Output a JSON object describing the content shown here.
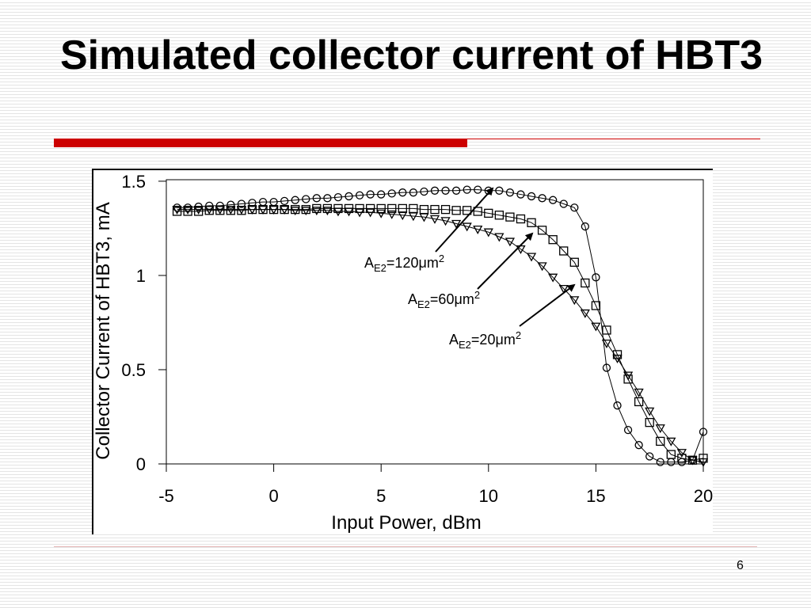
{
  "slide_title": "Simulated collector current of HBT3",
  "page_number": "6",
  "chart_data": {
    "type": "line",
    "xlabel": "Input Power, dBm",
    "ylabel": "Collector Current of HBT3, mA",
    "xlim": [
      -5,
      20
    ],
    "ylim": [
      0,
      1.55
    ],
    "xticks": [
      -5,
      0,
      5,
      10,
      15,
      20
    ],
    "yticks": [
      0,
      0.5,
      1,
      1.5
    ],
    "x": [
      -4.5,
      -4,
      -3.5,
      -3,
      -2.5,
      -2,
      -1.5,
      -1,
      -0.5,
      0,
      0.5,
      1,
      1.5,
      2,
      2.5,
      3,
      3.5,
      4,
      4.5,
      5,
      5.5,
      6,
      6.5,
      7,
      7.5,
      8,
      8.5,
      9,
      9.5,
      10,
      10.5,
      11,
      11.5,
      12,
      12.5,
      13,
      13.5,
      14,
      14.5,
      15,
      15.5,
      16,
      16.5,
      17,
      17.5,
      18,
      18.5,
      19,
      19.5,
      20
    ],
    "series": [
      {
        "marker": "circle",
        "color": "#000000",
        "values": [
          1.36,
          1.36,
          1.365,
          1.37,
          1.37,
          1.375,
          1.38,
          1.385,
          1.39,
          1.39,
          1.395,
          1.4,
          1.405,
          1.41,
          1.41,
          1.415,
          1.42,
          1.425,
          1.43,
          1.43,
          1.435,
          1.44,
          1.44,
          1.445,
          1.45,
          1.45,
          1.45,
          1.455,
          1.455,
          1.45,
          1.45,
          1.44,
          1.43,
          1.42,
          1.41,
          1.4,
          1.38,
          1.36,
          1.26,
          0.99,
          0.51,
          0.31,
          0.18,
          0.1,
          0.04,
          0.01,
          0.01,
          0.01,
          0.02,
          0.17
        ]
      },
      {
        "marker": "square",
        "color": "#000000",
        "values": [
          1.34,
          1.34,
          1.34,
          1.345,
          1.345,
          1.345,
          1.345,
          1.35,
          1.35,
          1.35,
          1.35,
          1.35,
          1.35,
          1.355,
          1.355,
          1.355,
          1.355,
          1.355,
          1.355,
          1.355,
          1.355,
          1.355,
          1.355,
          1.35,
          1.35,
          1.35,
          1.345,
          1.345,
          1.34,
          1.33,
          1.32,
          1.31,
          1.3,
          1.28,
          1.24,
          1.19,
          1.13,
          1.07,
          0.96,
          0.84,
          0.71,
          0.58,
          0.45,
          0.33,
          0.22,
          0.12,
          0.05,
          0.03,
          0.02,
          0.03
        ]
      },
      {
        "marker": "triangle",
        "color": "#000000",
        "values": [
          1.35,
          1.35,
          1.35,
          1.35,
          1.35,
          1.35,
          1.35,
          1.35,
          1.35,
          1.35,
          1.35,
          1.345,
          1.345,
          1.345,
          1.345,
          1.34,
          1.34,
          1.335,
          1.335,
          1.33,
          1.325,
          1.32,
          1.315,
          1.31,
          1.3,
          1.29,
          1.275,
          1.26,
          1.245,
          1.23,
          1.205,
          1.18,
          1.14,
          1.1,
          1.05,
          0.99,
          0.93,
          0.87,
          0.8,
          0.73,
          0.64,
          0.56,
          0.47,
          0.38,
          0.28,
          0.19,
          0.12,
          0.06,
          0.02,
          0.01
        ]
      }
    ],
    "annotations": [
      {
        "base": "A",
        "sub": "E2",
        "mid": "=120μm",
        "sup": "2"
      },
      {
        "base": "A",
        "sub": "E2",
        "mid": "=60μm",
        "sup": "2"
      },
      {
        "base": "A",
        "sub": "E2",
        "mid": "=20μm",
        "sup": "2"
      }
    ]
  }
}
